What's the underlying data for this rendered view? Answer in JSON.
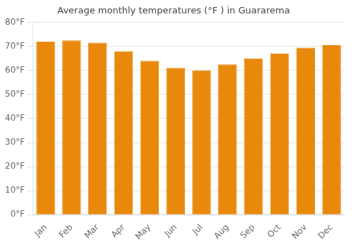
{
  "chart_data": {
    "type": "bar",
    "title": "Average monthly temperatures (°F ) in Guararema",
    "categories": [
      "Jan",
      "Feb",
      "Mar",
      "Apr",
      "May",
      "Jun",
      "Jul",
      "Aug",
      "Sep",
      "Oct",
      "Nov",
      "Dec"
    ],
    "values": [
      72,
      72.5,
      71.5,
      68,
      64,
      61,
      60,
      62.5,
      65,
      67,
      69.5,
      70.5
    ],
    "color": "#E8890C",
    "ylim": [
      0,
      80
    ],
    "yticks": [
      {
        "value": 0,
        "label": "0°F"
      },
      {
        "value": 10,
        "label": "10°F"
      },
      {
        "value": 20,
        "label": "20°F"
      },
      {
        "value": 30,
        "label": "30°F"
      },
      {
        "value": 40,
        "label": "40°F"
      },
      {
        "value": 50,
        "label": "50°F"
      },
      {
        "value": 60,
        "label": "60°F"
      },
      {
        "value": 70,
        "label": "70°F"
      },
      {
        "value": 80,
        "label": "80°F"
      }
    ],
    "grid": true
  }
}
